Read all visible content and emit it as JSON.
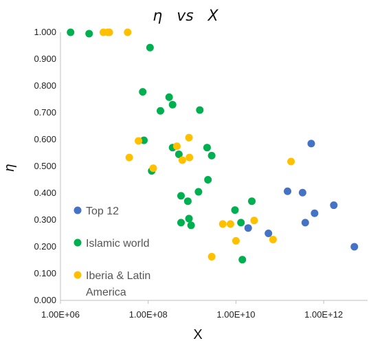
{
  "chart_data": {
    "type": "scatter",
    "title": "η   vs   X",
    "xlabel": "X",
    "ylabel": "η",
    "x_scale": "log",
    "xlim": [
      1000000,
      10000000000000
    ],
    "ylim": [
      0,
      1
    ],
    "x_ticks": [
      1000000,
      100000000,
      10000000000,
      1000000000000
    ],
    "x_tick_labels": [
      "1.00E+06",
      "1.00E+08",
      "1.00E+10",
      "1.00E+12"
    ],
    "y_ticks": [
      0,
      0.1,
      0.2,
      0.3,
      0.4,
      0.5,
      0.6,
      0.7,
      0.8,
      0.9,
      1.0
    ],
    "y_tick_labels": [
      "0.000",
      "0.100",
      "0.200",
      "0.300",
      "0.400",
      "0.500",
      "0.600",
      "0.700",
      "0.800",
      "0.900",
      "1.000"
    ],
    "grid": false,
    "legend_position": "bottom-left",
    "series": [
      {
        "name": "Top 12",
        "color": "#4472C4",
        "points": [
          {
            "x": 19000000000,
            "y": 0.27
          },
          {
            "x": 55000000000,
            "y": 0.25
          },
          {
            "x": 150000000000,
            "y": 0.407
          },
          {
            "x": 330000000000,
            "y": 0.402
          },
          {
            "x": 380000000000,
            "y": 0.29
          },
          {
            "x": 520000000000,
            "y": 0.585
          },
          {
            "x": 620000000000,
            "y": 0.325
          },
          {
            "x": 1700000000000,
            "y": 0.355
          },
          {
            "x": 5000000000000,
            "y": 0.2
          }
        ]
      },
      {
        "name": "Islamic world",
        "color": "#00B050",
        "points": [
          {
            "x": 1700000,
            "y": 1.0
          },
          {
            "x": 4500000,
            "y": 0.995
          },
          {
            "x": 110000000,
            "y": 0.943
          },
          {
            "x": 75000000,
            "y": 0.778
          },
          {
            "x": 80000000,
            "y": 0.597
          },
          {
            "x": 120000000,
            "y": 0.483
          },
          {
            "x": 190000000,
            "y": 0.707
          },
          {
            "x": 300000000,
            "y": 0.758
          },
          {
            "x": 360000000,
            "y": 0.73
          },
          {
            "x": 360000000,
            "y": 0.57
          },
          {
            "x": 500000000,
            "y": 0.545
          },
          {
            "x": 560000000,
            "y": 0.39
          },
          {
            "x": 560000000,
            "y": 0.29
          },
          {
            "x": 800000000,
            "y": 0.37
          },
          {
            "x": 850000000,
            "y": 0.305
          },
          {
            "x": 950000000,
            "y": 0.28
          },
          {
            "x": 1500000000,
            "y": 0.71
          },
          {
            "x": 1400000000,
            "y": 0.405
          },
          {
            "x": 2200000000,
            "y": 0.57
          },
          {
            "x": 2300000000,
            "y": 0.45
          },
          {
            "x": 2800000000,
            "y": 0.54
          },
          {
            "x": 9500000000,
            "y": 0.337
          },
          {
            "x": 13000000000,
            "y": 0.29
          },
          {
            "x": 14000000000,
            "y": 0.152
          },
          {
            "x": 23000000000,
            "y": 0.37
          }
        ]
      },
      {
        "name": "Iberia & Latin\nAmerica",
        "color": "#FFC000",
        "points": [
          {
            "x": 9500000,
            "y": 1.0
          },
          {
            "x": 12000000,
            "y": 1.0
          },
          {
            "x": 13000000,
            "y": 1.0
          },
          {
            "x": 34000000,
            "y": 1.0
          },
          {
            "x": 37000000,
            "y": 0.533
          },
          {
            "x": 60000000,
            "y": 0.595
          },
          {
            "x": 130000000,
            "y": 0.493
          },
          {
            "x": 450000000,
            "y": 0.575
          },
          {
            "x": 600000000,
            "y": 0.523
          },
          {
            "x": 850000000,
            "y": 0.607
          },
          {
            "x": 870000000,
            "y": 0.533
          },
          {
            "x": 2800000000,
            "y": 0.163
          },
          {
            "x": 5000000000,
            "y": 0.285
          },
          {
            "x": 7500000000,
            "y": 0.285
          },
          {
            "x": 10000000000,
            "y": 0.222
          },
          {
            "x": 26000000000,
            "y": 0.298
          },
          {
            "x": 70000000000,
            "y": 0.227
          },
          {
            "x": 180000000000,
            "y": 0.518
          }
        ]
      }
    ]
  }
}
